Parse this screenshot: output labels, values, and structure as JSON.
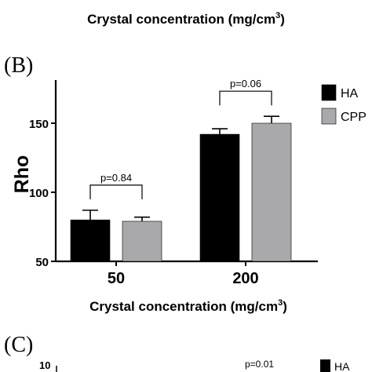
{
  "top_caption": {
    "text": "Crystal concentration (mg/cm",
    "sup": "3",
    "close": ")"
  },
  "panel_b": {
    "label": "(B)"
  },
  "panel_c": {
    "label": "(C)",
    "tick_label": "10",
    "p_label": "p=0.01",
    "legend_entry": "HA",
    "legend_color": "#000000"
  },
  "chart_data": {
    "type": "bar",
    "categories": [
      "50",
      "200"
    ],
    "series": [
      {
        "name": "HA",
        "color": "#000000",
        "values": [
          80,
          142
        ],
        "errors": [
          7,
          4
        ]
      },
      {
        "name": "CPP",
        "color": "#a9a9ab",
        "values": [
          79,
          150
        ],
        "errors": [
          3,
          5
        ]
      }
    ],
    "xlabel": "Crystal concentration (mg/cm",
    "xlabel_sup": "3",
    "xlabel_close": ")",
    "ylabel": "Rho",
    "ylim": [
      50,
      180
    ],
    "yticks": [
      50,
      100,
      150
    ],
    "annotations": [
      {
        "category_index": 0,
        "text": "p=0.84"
      },
      {
        "category_index": 1,
        "text": "p=0.06"
      }
    ],
    "legend_position": "top-right",
    "grid": false
  }
}
